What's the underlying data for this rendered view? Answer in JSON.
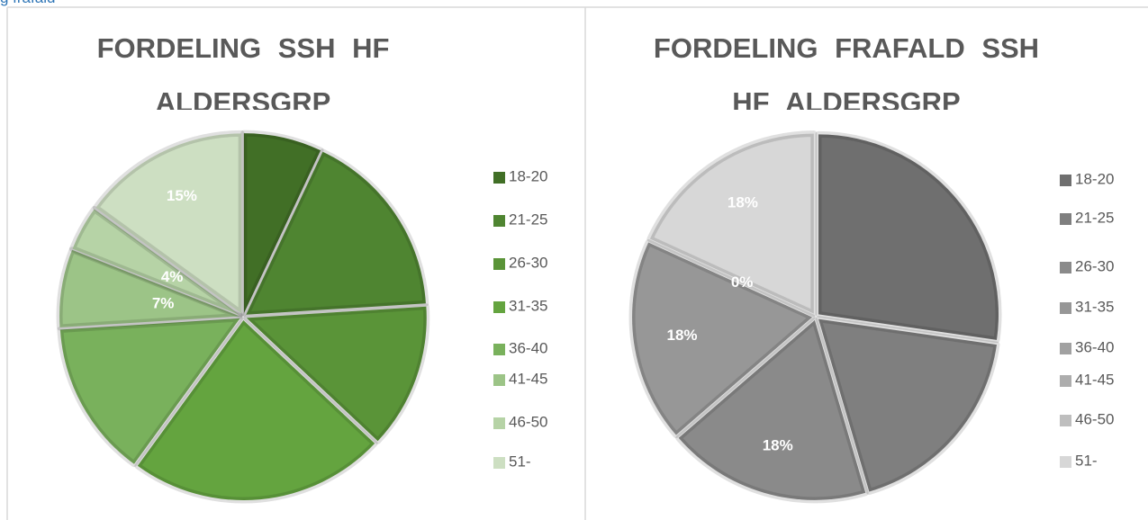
{
  "caption": "g frafald",
  "chart_data": [
    {
      "type": "pie",
      "title": "FORDELING SSH HF ALDERSGRP",
      "categories": [
        "18-20",
        "21-25",
        "26-30",
        "31-35",
        "36-40",
        "41-45",
        "46-50",
        "51-"
      ],
      "values": [
        7,
        17,
        13,
        23,
        14,
        7,
        4,
        15
      ],
      "value_labels": [
        null,
        null,
        null,
        null,
        null,
        "7%",
        "4%",
        "15%"
      ],
      "colors": [
        "#416f26",
        "#4f8531",
        "#5a9438",
        "#64a43f",
        "#79b15c",
        "#9cc487",
        "#b6d3a6",
        "#cddfc2"
      ]
    },
    {
      "type": "pie",
      "title": "FORDELING FRAFALD SSH HF ALDERSGRP",
      "categories": [
        "18-20",
        "21-25",
        "26-30",
        "31-35",
        "36-40",
        "41-45",
        "46-50",
        "51-"
      ],
      "values": [
        27,
        18,
        18,
        18,
        0,
        0,
        0,
        18
      ],
      "value_labels": [
        null,
        null,
        "18%",
        "18%",
        "0%",
        null,
        null,
        "18%"
      ],
      "colors": [
        "#6f6f6f",
        "#7f7f7f",
        "#8a8a8a",
        "#979797",
        "#a1a1a1",
        "#adadad",
        "#bebebe",
        "#d7d7d7"
      ]
    }
  ]
}
